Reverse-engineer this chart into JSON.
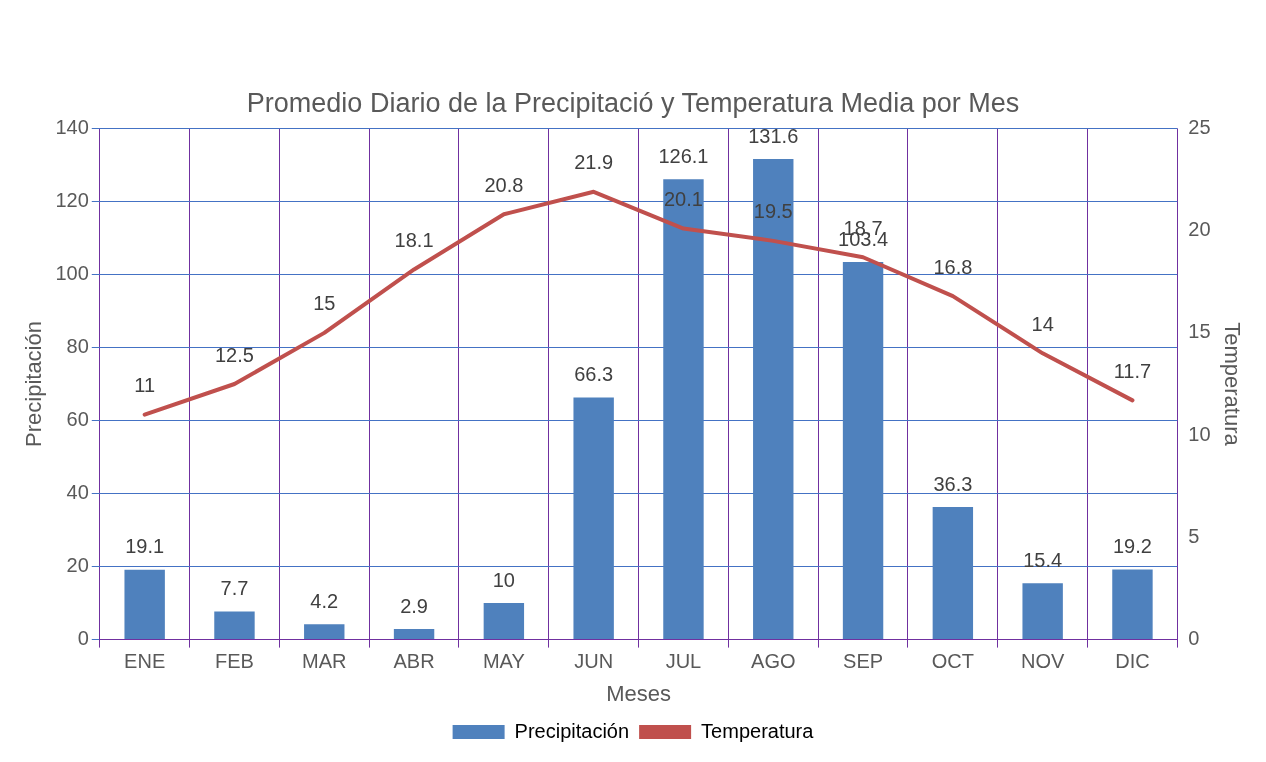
{
  "chart_data": {
    "type": "bar",
    "title": "Promedio Diario de la Precipitació y Temperatura Media por Mes",
    "xlabel": "Meses",
    "ylabel": "Precipitación",
    "y2label": "Temperatura",
    "categories": [
      "ENE",
      "FEB",
      "MAR",
      "ABR",
      "MAY",
      "JUN",
      "JUL",
      "AGO",
      "SEP",
      "OCT",
      "NOV",
      "DIC"
    ],
    "series": [
      {
        "name": "Precipitación",
        "color": "#4f81bd",
        "values": [
          19.1,
          7.7,
          4.2,
          2.9,
          10,
          66.3,
          126.1,
          131.6,
          103.4,
          36.3,
          15.4,
          19.2
        ]
      },
      {
        "name": "Temperatura",
        "type": "line",
        "axis": "y2",
        "color": "#c0504d",
        "values": [
          11,
          12.5,
          15,
          18.1,
          20.8,
          21.9,
          20.1,
          19.5,
          18.7,
          16.8,
          14,
          11.7
        ]
      }
    ],
    "ylim": [
      0,
      140
    ],
    "yticks": [
      0,
      20,
      40,
      60,
      80,
      100,
      120,
      140
    ],
    "y2lim": [
      0,
      25
    ],
    "y2ticks": [
      0,
      5,
      10,
      15,
      20,
      25
    ],
    "grid": true,
    "legend": "bottom",
    "data_labels": true,
    "marker": "none",
    "line_style": "solid"
  }
}
